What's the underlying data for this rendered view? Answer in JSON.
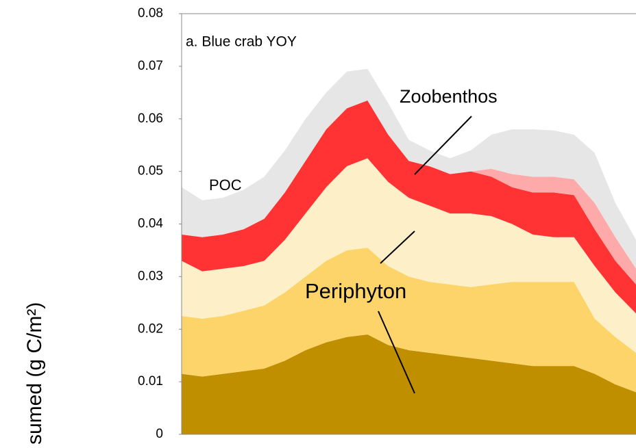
{
  "chart_data": {
    "type": "stacked_area",
    "title": "a. Blue crab YOY",
    "y_label": "sumed (g C/m²)",
    "categories": [
      null,
      null,
      null,
      null,
      null,
      null,
      null,
      null,
      null,
      null,
      null,
      null,
      null,
      null,
      null,
      null,
      null,
      null,
      null,
      null,
      null,
      null,
      null
    ],
    "series": [
      {
        "color": "#c08f00",
        "values": [
          0.0115,
          0.011,
          0.0115,
          0.012,
          0.0125,
          0.014,
          0.016,
          0.0175,
          0.0185,
          0.019,
          0.017,
          0.016,
          0.0155,
          0.015,
          0.0145,
          0.014,
          0.0135,
          0.013,
          0.013,
          0.013,
          0.0115,
          0.0095,
          0.008
        ]
      },
      {
        "color": "#fcd46a",
        "values": [
          0.011,
          0.011,
          0.011,
          0.0115,
          0.012,
          0.013,
          0.014,
          0.0155,
          0.0165,
          0.0165,
          0.015,
          0.014,
          0.0135,
          0.0135,
          0.0135,
          0.0145,
          0.0155,
          0.016,
          0.016,
          0.016,
          0.0105,
          0.009,
          0.0075
        ]
      },
      {
        "color": "#fdefc7",
        "values": [
          0.0105,
          0.009,
          0.009,
          0.0085,
          0.0085,
          0.01,
          0.012,
          0.014,
          0.016,
          0.017,
          0.016,
          0.015,
          0.0145,
          0.0135,
          0.014,
          0.013,
          0.011,
          0.009,
          0.0085,
          0.0085,
          0.01,
          0.0085,
          0.0075
        ]
      },
      {
        "color": "#ff3333",
        "values": [
          0.005,
          0.0065,
          0.0065,
          0.007,
          0.008,
          0.009,
          0.01,
          0.011,
          0.011,
          0.011,
          0.009,
          0.007,
          0.0075,
          0.0075,
          0.008,
          0.0075,
          0.007,
          0.008,
          0.0085,
          0.008,
          0.007,
          0.006,
          0.0055
        ]
      },
      {
        "color": "#ffaaaa",
        "values": [
          0,
          0,
          0,
          0,
          0,
          0,
          0,
          0,
          0,
          0,
          0,
          0,
          0,
          0,
          0,
          0.0015,
          0.0025,
          0.003,
          0.003,
          0.003,
          0.005,
          0.0045,
          0.003
        ]
      },
      {
        "color": "#e6e6e6",
        "values": [
          0.009,
          0.007,
          0.007,
          0.0075,
          0.008,
          0.008,
          0.008,
          0.007,
          0.007,
          0.006,
          0.006,
          0.004,
          0.003,
          0.003,
          0.004,
          0.0065,
          0.0085,
          0.009,
          0.0088,
          0.0085,
          0.0095,
          0.0065,
          0.0055
        ]
      }
    ],
    "ylim": [
      0,
      0.08
    ],
    "yticks": [
      0,
      0.01,
      0.02,
      0.03,
      0.04,
      0.05,
      0.06,
      0.07,
      0.08
    ],
    "annotations": [
      "POC",
      "Zoobenthos",
      "Periphyton"
    ]
  }
}
